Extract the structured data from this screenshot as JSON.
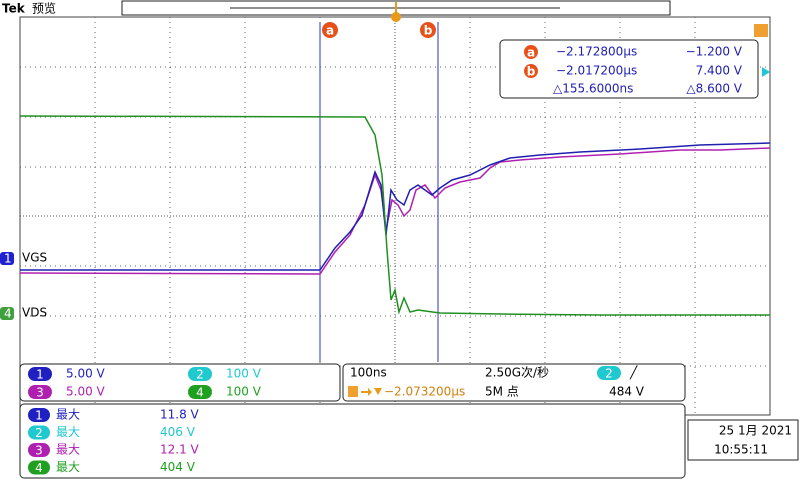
{
  "header": {
    "brand": "Tek",
    "mode": "预览"
  },
  "cursors": {
    "a": {
      "label": "a",
      "time": "−2.172800µs",
      "voltage": "−1.200 V"
    },
    "b": {
      "label": "b",
      "time": "−2.017200µs",
      "voltage": "7.400 V"
    },
    "delta": {
      "time": "△155.6000ns",
      "voltage": "△8.600 V"
    }
  },
  "channel_labels": [
    {
      "number": "1",
      "name": "VGS"
    },
    {
      "number": "4",
      "name": "VDS"
    }
  ],
  "channels": [
    {
      "number": "1",
      "scale": "5.00 V"
    },
    {
      "number": "2",
      "scale": "100 V"
    },
    {
      "number": "3",
      "scale": "5.00 V"
    },
    {
      "number": "4",
      "scale": "100 V"
    }
  ],
  "timebase": {
    "scale": "100ns",
    "sample_rate": "2.50G次/秒",
    "trigger_channel": "2",
    "trigger_slope": "╱",
    "trigger_position": "−2.073200µs",
    "record_length": "5M 点",
    "trigger_level": "484 V"
  },
  "measurements": [
    {
      "channel": "1",
      "type": "最大",
      "value": "11.8 V"
    },
    {
      "channel": "2",
      "type": "最大",
      "value": "406 V"
    },
    {
      "channel": "3",
      "type": "最大",
      "value": "12.1 V"
    },
    {
      "channel": "4",
      "type": "最大",
      "value": "404 V"
    }
  ],
  "datetime": {
    "date": "25 1月 2021",
    "time": "10:55:11"
  }
}
